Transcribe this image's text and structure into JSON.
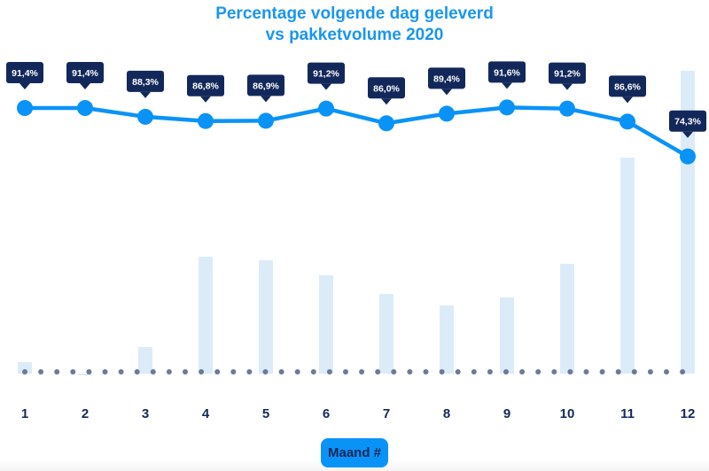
{
  "chart_data": {
    "type": "bar+line",
    "title_line1": "Percentage volgende dag geleverd",
    "title_line2": "vs pakketvolume 2020",
    "xlabel": "Maand #",
    "categories": [
      "1",
      "2",
      "3",
      "4",
      "5",
      "6",
      "7",
      "8",
      "9",
      "10",
      "11",
      "12"
    ],
    "series": [
      {
        "type": "line",
        "values": [
          91.4,
          91.4,
          88.3,
          86.8,
          86.9,
          91.2,
          86.0,
          89.4,
          91.6,
          91.2,
          86.6,
          74.3
        ],
        "labels": [
          "91,4%",
          "91,4%",
          "88,3%",
          "86,8%",
          "86,9%",
          "91,2%",
          "86,0%",
          "89,4%",
          "91,6%",
          "91,2%",
          "86,6%",
          "74,3%"
        ]
      },
      {
        "type": "bar",
        "values": [
          13,
          -2,
          30,
          132,
          128,
          111,
          90,
          77,
          86,
          124,
          244,
          342
        ]
      }
    ],
    "grid": false,
    "colors": {
      "title": "#1a96f0",
      "line": "#0a93f7",
      "label_bg": "#13285a",
      "bar": "#dcebf8",
      "baseline_dots": "#6b7a96",
      "tick": "#13285a"
    }
  }
}
